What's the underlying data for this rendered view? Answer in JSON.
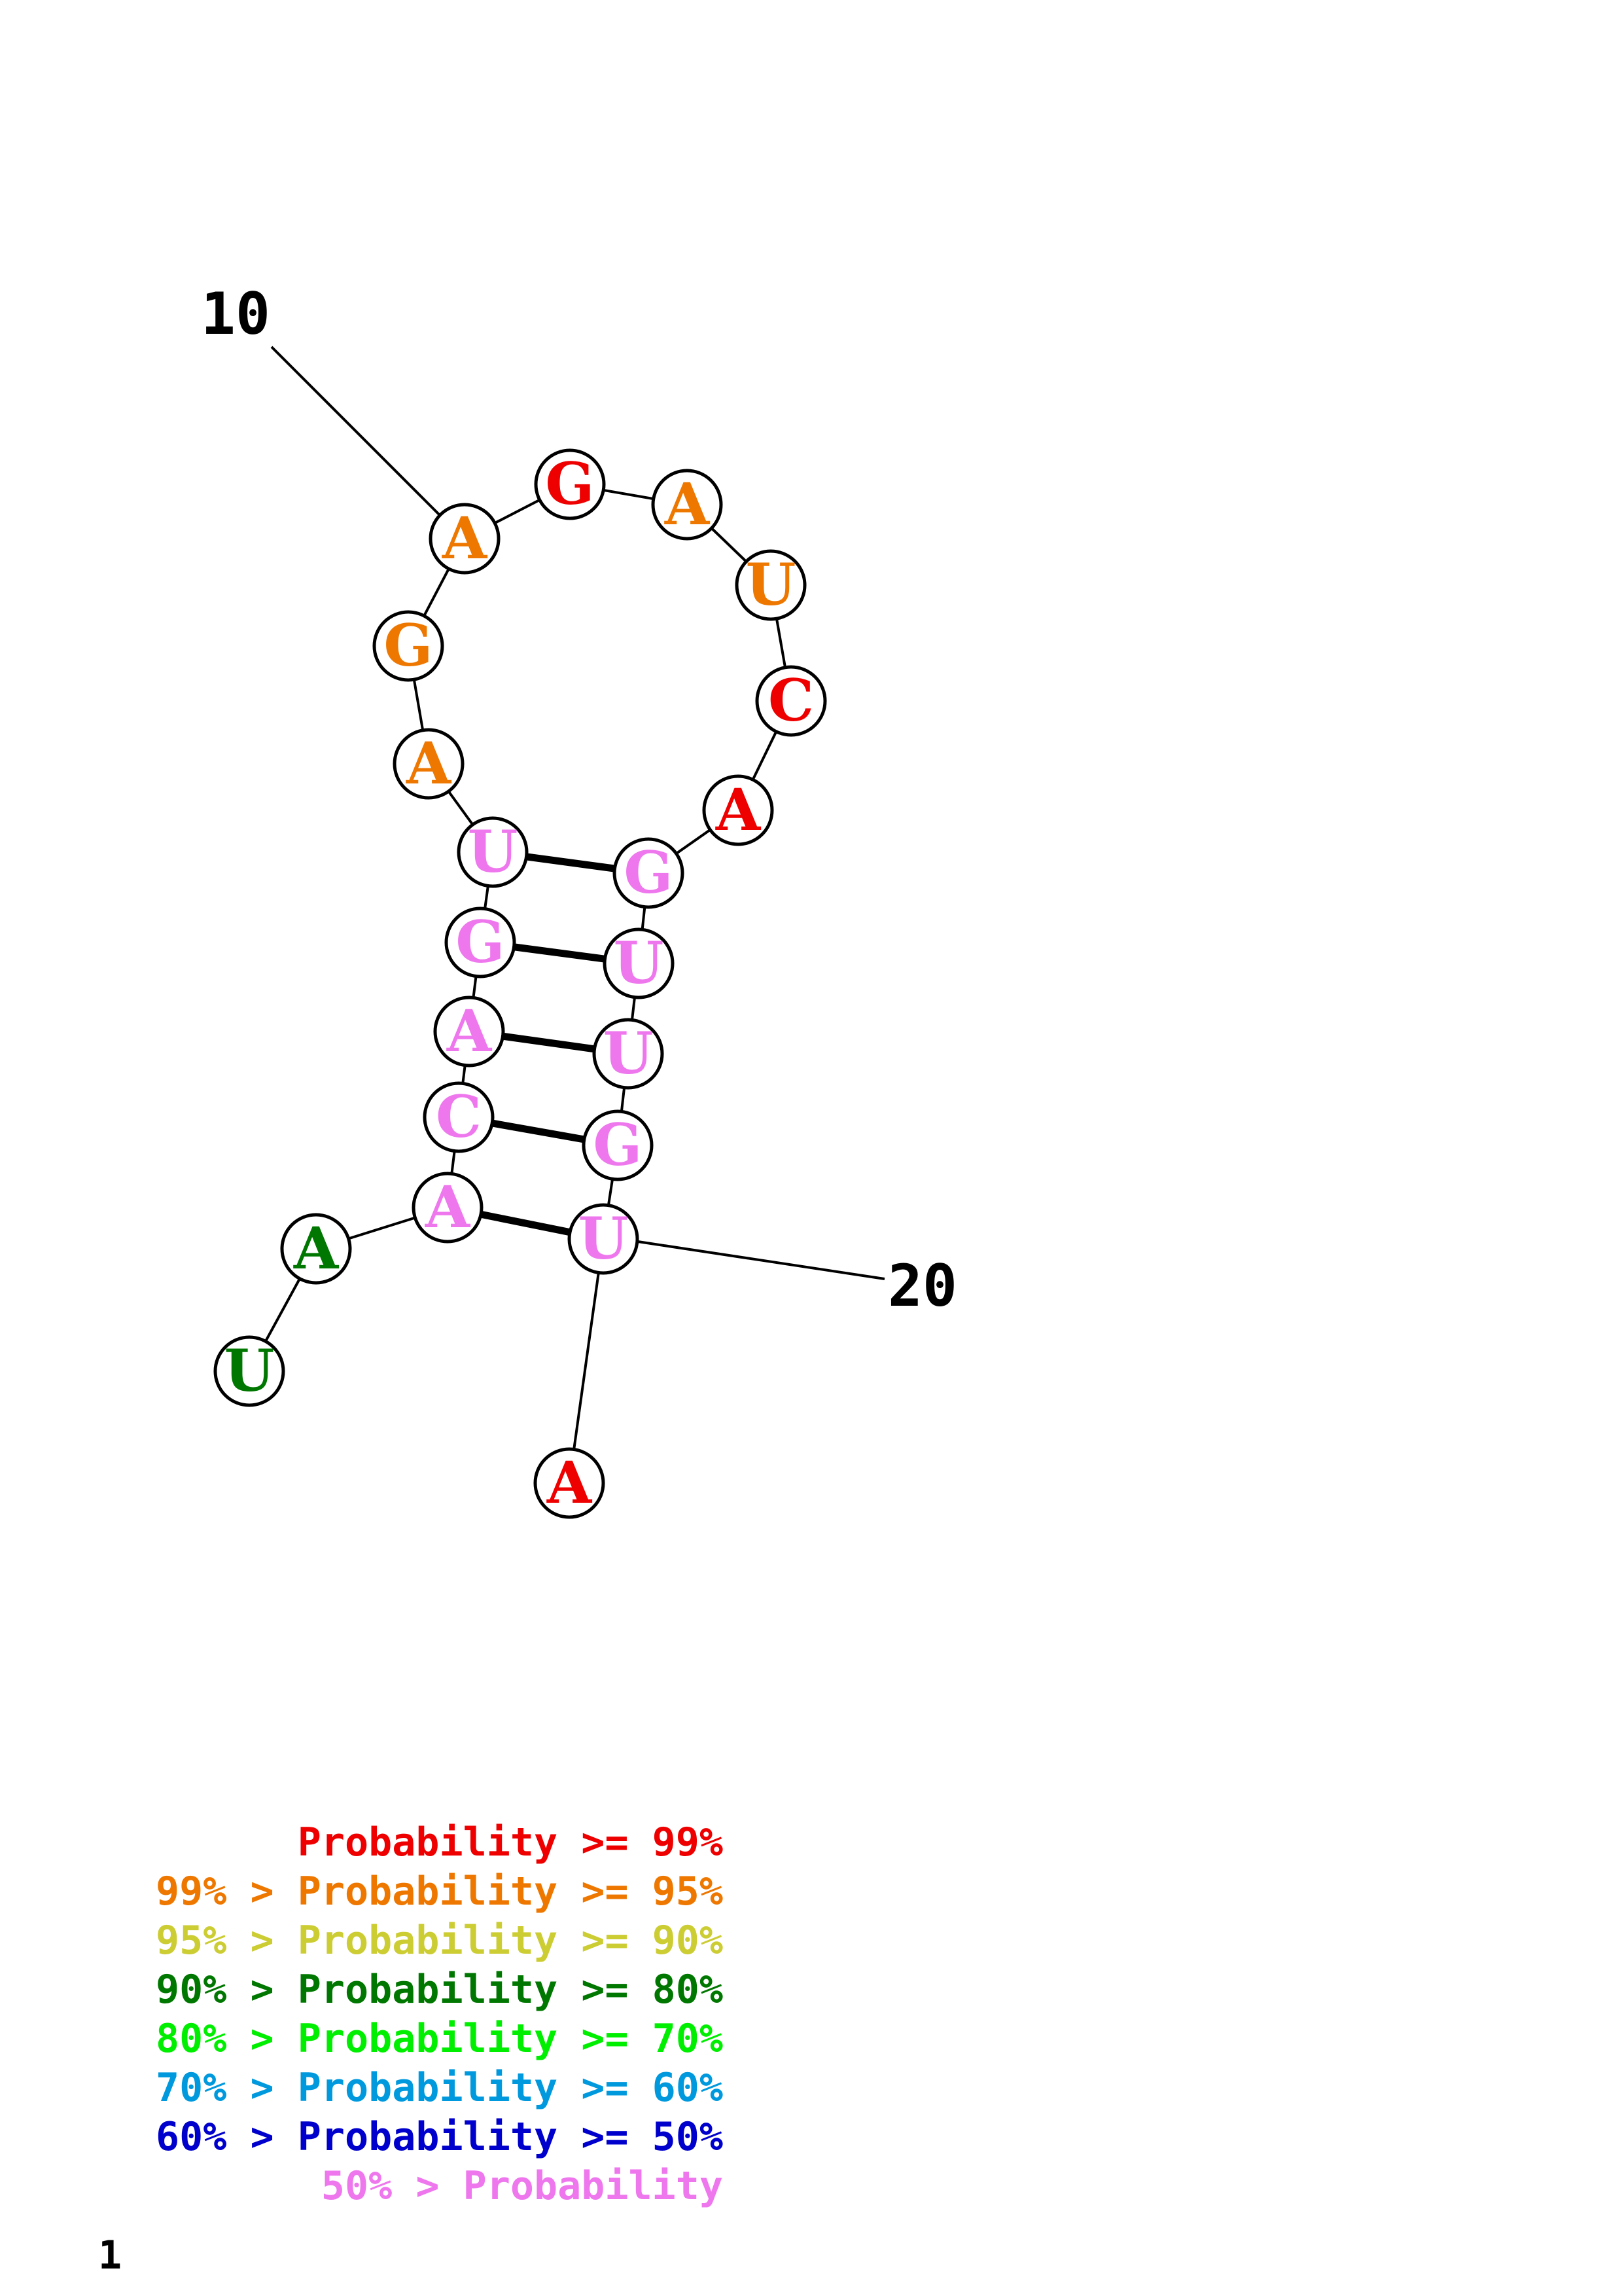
{
  "colors": {
    "p99": "#ee0000",
    "p95": "#ee7700",
    "p90": "#cccc33",
    "p80": "#007700",
    "p70": "#00ee00",
    "p60": "#0099dd",
    "p50": "#0000cc",
    "plow": "#ee77ee"
  },
  "nucleotides": [
    {
      "base": "U",
      "prob": "p80"
    },
    {
      "base": "A",
      "prob": "p80"
    },
    {
      "base": "A",
      "prob": "plow"
    },
    {
      "base": "C",
      "prob": "plow"
    },
    {
      "base": "A",
      "prob": "plow"
    },
    {
      "base": "G",
      "prob": "plow"
    },
    {
      "base": "U",
      "prob": "plow"
    },
    {
      "base": "A",
      "prob": "p95"
    },
    {
      "base": "G",
      "prob": "p95"
    },
    {
      "base": "A",
      "prob": "p95"
    },
    {
      "base": "G",
      "prob": "p99"
    },
    {
      "base": "A",
      "prob": "p95"
    },
    {
      "base": "U",
      "prob": "p95"
    },
    {
      "base": "C",
      "prob": "p99"
    },
    {
      "base": "A",
      "prob": "p99"
    },
    {
      "base": "G",
      "prob": "plow"
    },
    {
      "base": "U",
      "prob": "plow"
    },
    {
      "base": "U",
      "prob": "plow"
    },
    {
      "base": "G",
      "prob": "plow"
    },
    {
      "base": "U",
      "prob": "plow"
    },
    {
      "base": "A",
      "prob": "p99"
    }
  ],
  "pairs": [
    [
      3,
      20
    ],
    [
      4,
      19
    ],
    [
      5,
      18
    ],
    [
      6,
      17
    ],
    [
      7,
      16
    ]
  ],
  "numbering": [
    {
      "label": "10",
      "index": 10
    },
    {
      "label": "20",
      "index": 20
    }
  ],
  "legend": [
    {
      "prefix": "",
      "text": "Probability >= 99%",
      "color": "p99"
    },
    {
      "prefix": "99% > ",
      "text": "Probability >= 95%",
      "color": "p95"
    },
    {
      "prefix": "95% > ",
      "text": "Probability >= 90%",
      "color": "p90"
    },
    {
      "prefix": "90% > ",
      "text": "Probability >= 80%",
      "color": "p80"
    },
    {
      "prefix": "80% > ",
      "text": "Probability >= 70%",
      "color": "p70"
    },
    {
      "prefix": "70% > ",
      "text": "Probability >= 60%",
      "color": "p60"
    },
    {
      "prefix": "60% > ",
      "text": "Probability >= 50%",
      "color": "p50"
    },
    {
      "prefix": "50% > ",
      "text": "Probability",
      "color": "plow"
    }
  ],
  "footer": {
    "page_number": "1"
  }
}
